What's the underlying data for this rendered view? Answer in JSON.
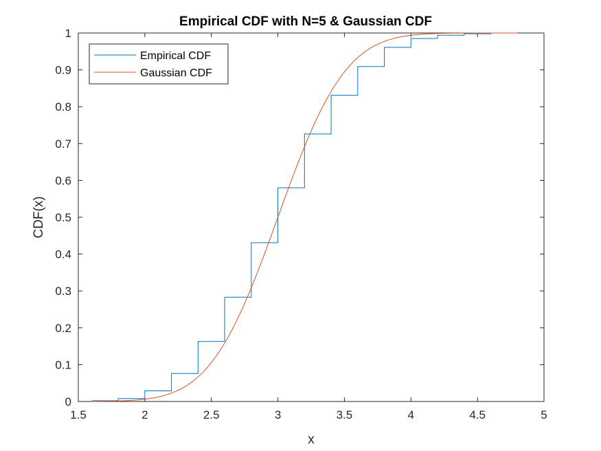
{
  "chart_data": {
    "type": "line",
    "title": "Empirical CDF with N=5 & Gaussian CDF",
    "xlabel": "x",
    "ylabel": "CDF(x)",
    "xlim": [
      1.5,
      5
    ],
    "ylim": [
      0,
      1
    ],
    "xticks": [
      1.5,
      2,
      2.5,
      3,
      3.5,
      4,
      4.5,
      5
    ],
    "xtick_labels": [
      "1.5",
      "2",
      "2.5",
      "3",
      "3.5",
      "4",
      "4.5",
      "5"
    ],
    "yticks": [
      0,
      0.1,
      0.2,
      0.3,
      0.4,
      0.5,
      0.6,
      0.7,
      0.8,
      0.9,
      1
    ],
    "ytick_labels": [
      "0",
      "0.1",
      "0.2",
      "0.3",
      "0.4",
      "0.5",
      "0.6",
      "0.7",
      "0.8",
      "0.9",
      "1"
    ],
    "grid": false,
    "legend_position": "top-left",
    "series": [
      {
        "name": "Empirical CDF",
        "kind": "stairs",
        "color": "#0072BD",
        "x": [
          1.6,
          1.8,
          2.0,
          2.2,
          2.4,
          2.6,
          2.8,
          3.0,
          3.2,
          3.4,
          3.6,
          3.8,
          4.0,
          4.2,
          4.4,
          4.6,
          4.8
        ],
        "y": [
          0.002,
          0.008,
          0.029,
          0.076,
          0.163,
          0.283,
          0.431,
          0.58,
          0.726,
          0.831,
          0.909,
          0.961,
          0.985,
          0.994,
          0.998,
          1.0,
          1.0
        ]
      },
      {
        "name": "Gaussian CDF",
        "kind": "line",
        "color": "#D95319",
        "mean": 3.0,
        "std": 0.4,
        "x_range": [
          1.6,
          4.8
        ]
      }
    ]
  }
}
